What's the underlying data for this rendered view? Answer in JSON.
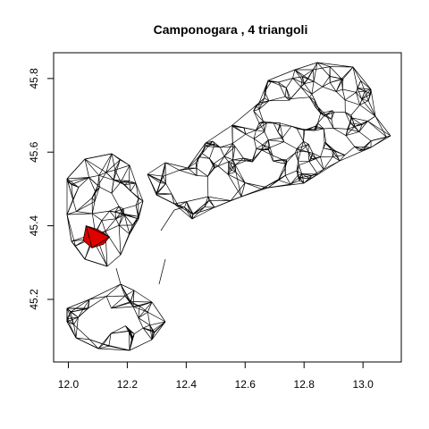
{
  "chart_data": {
    "type": "scatter",
    "title": "Camponogara ,  4  triangoli",
    "xlabel": "",
    "ylabel": "",
    "xlim": [
      11.95,
      13.13
    ],
    "ylim": [
      45.03,
      45.87
    ],
    "x_ticks": [
      "12.0",
      "12.2",
      "12.4",
      "12.6",
      "12.8",
      "13.0"
    ],
    "y_ticks": [
      "45.2",
      "45.4",
      "45.6",
      "45.8"
    ],
    "grid": false,
    "legend": "none",
    "colors": {
      "mesh": "#000000",
      "highlight": "#e00000",
      "background": "#ffffff"
    },
    "highlight_triangles": [
      [
        [
          12.06,
          45.4
        ],
        [
          12.08,
          45.34
        ],
        [
          12.14,
          45.37
        ]
      ],
      [
        [
          12.06,
          45.4
        ],
        [
          12.14,
          45.37
        ],
        [
          12.1,
          45.39
        ]
      ],
      [
        [
          12.06,
          45.4
        ],
        [
          12.05,
          45.36
        ],
        [
          12.08,
          45.34
        ]
      ],
      [
        [
          12.08,
          45.34
        ],
        [
          12.12,
          45.35
        ],
        [
          12.14,
          45.37
        ]
      ]
    ]
  }
}
